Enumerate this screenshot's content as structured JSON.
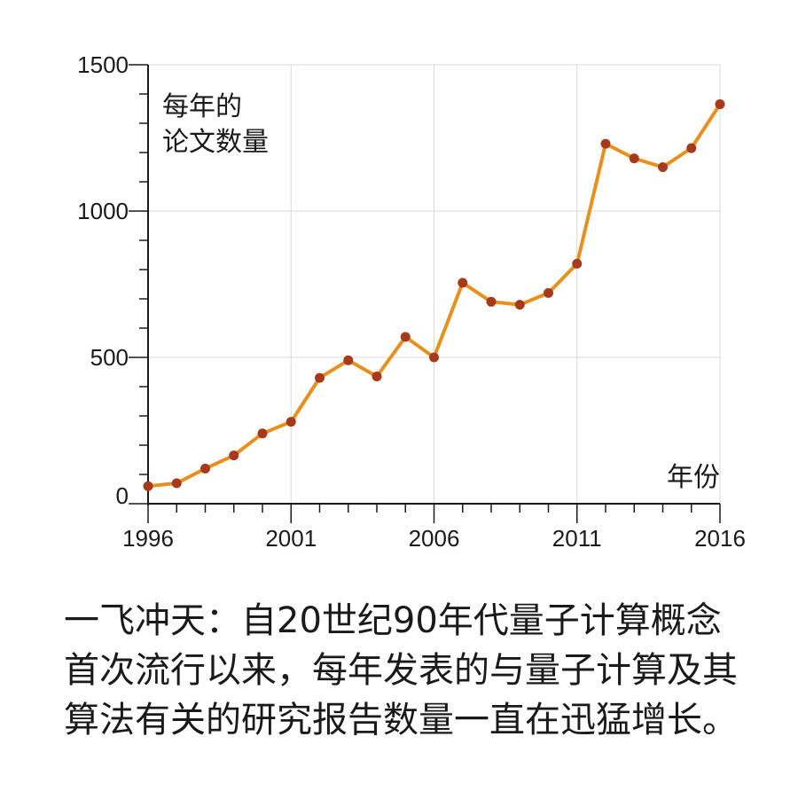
{
  "chart_data": {
    "type": "line",
    "ylabel": "每年的\n论文数量",
    "xlabel": "年份",
    "x": [
      1996,
      1997,
      1998,
      1999,
      2000,
      2001,
      2002,
      2003,
      2004,
      2005,
      2006,
      2007,
      2008,
      2009,
      2010,
      2011,
      2012,
      2013,
      2014,
      2015,
      2016
    ],
    "values": [
      60,
      70,
      120,
      165,
      240,
      280,
      430,
      490,
      435,
      570,
      500,
      755,
      690,
      680,
      720,
      820,
      1230,
      1180,
      1150,
      1215,
      1365
    ],
    "xlim": [
      1996,
      2016
    ],
    "ylim": [
      0,
      1500
    ],
    "x_tick_labels": [
      "1996",
      "2001",
      "2006",
      "2011",
      "2016"
    ],
    "y_tick_labels": [
      "0",
      "500",
      "1000",
      "1500"
    ],
    "grid": true,
    "colors": {
      "line": "#e8901e",
      "marker": "#a83a1c",
      "axis": "#1a1a1a",
      "grid": "#d9d9d9"
    }
  },
  "caption": {
    "lines": [
      "一飞冲天：自20世纪90年代量子计算概念",
      "首次流行以来，每年发表的与量子计算及其",
      "算法有关的研究报告数量一直在迅猛增长。"
    ]
  }
}
